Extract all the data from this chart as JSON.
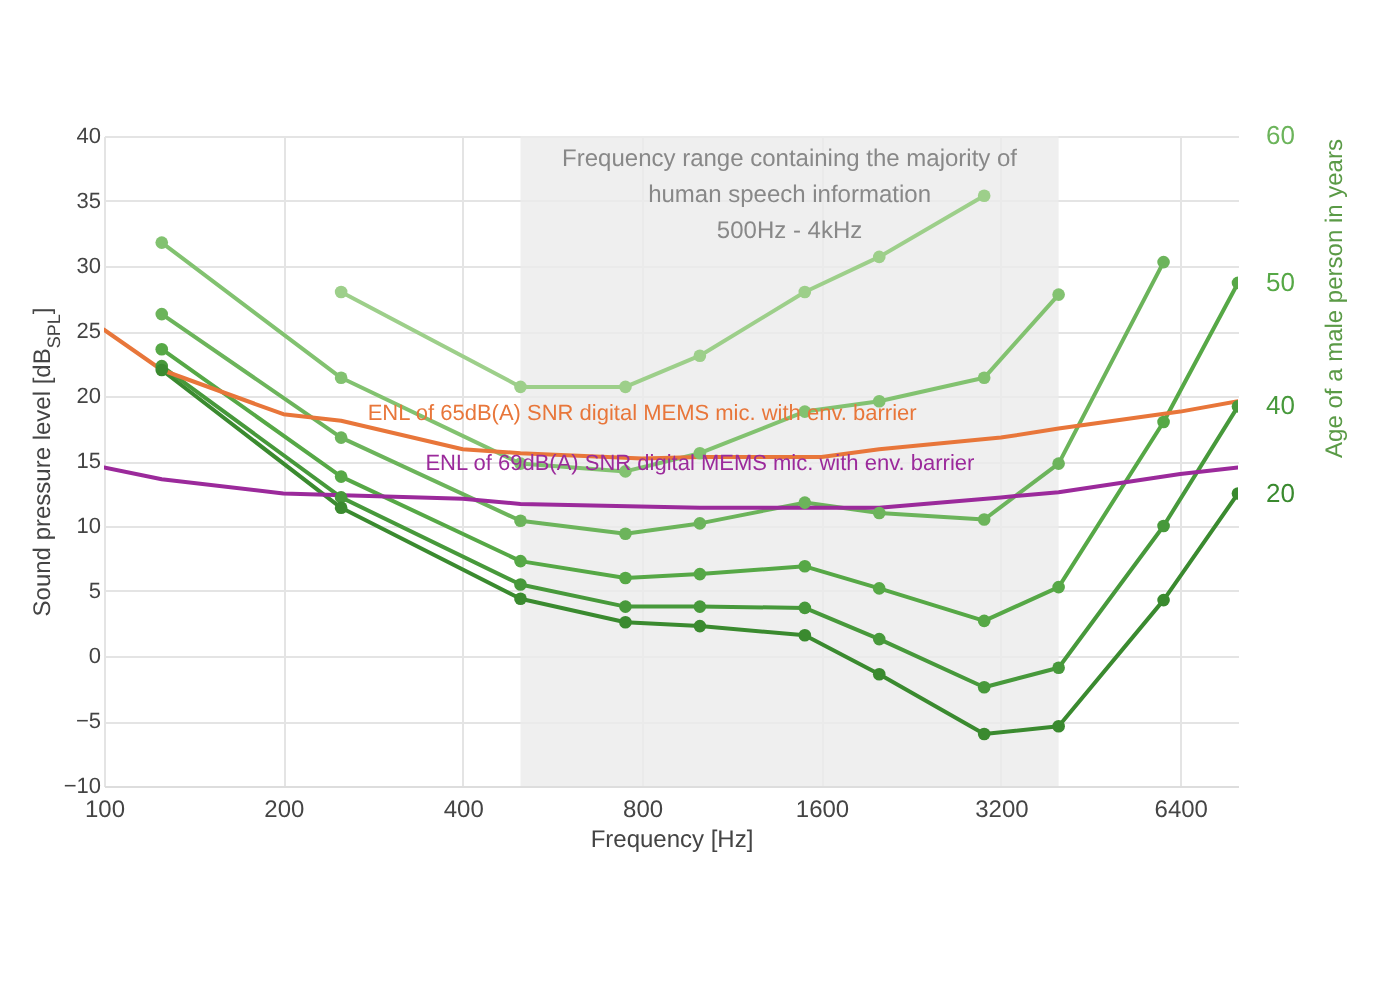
{
  "chart_data": {
    "type": "line",
    "xlabel": "Frequency [Hz]",
    "ylabel": "Sound pressure level [dB$_{SPL}$]",
    "y2label": "Age of a male person in years",
    "log": "x",
    "xlim": [
      100,
      8000
    ],
    "xticks": [
      100,
      200,
      400,
      800,
      1600,
      3200,
      6400
    ],
    "ylim": [
      -10,
      40
    ],
    "yticks": [
      -10,
      -5,
      0,
      5,
      10,
      15,
      20,
      25,
      30,
      35,
      40
    ],
    "grid": true,
    "legend": false,
    "marker": "circle",
    "line_style": "solid",
    "bands": [
      {
        "axis": "x",
        "from": 500,
        "to": 4000,
        "label": "Frequency range containing the majority of\nhuman speech information\n500Hz - 4kHz",
        "color": "#ebebeb"
      }
    ],
    "series": [
      {
        "color": "#9dcf8a",
        "x": [
          250,
          500,
          750,
          1000,
          1500,
          2000,
          3000
        ],
        "values": [
          28.0,
          20.7,
          20.7,
          23.1,
          28.0,
          30.7,
          35.4
        ]
      },
      {
        "color": "#82c270",
        "x": [
          125,
          250,
          500,
          750,
          1000,
          1500,
          2000,
          3000,
          4000
        ],
        "values": [
          31.8,
          21.4,
          14.8,
          14.2,
          15.6,
          18.8,
          19.6,
          21.4,
          27.8
        ]
      },
      {
        "name": "60",
        "color": "#6cb45b",
        "x": [
          125,
          250,
          500,
          750,
          1000,
          1500,
          2000,
          3000,
          4000,
          6000
        ],
        "values": [
          26.3,
          16.8,
          10.4,
          9.4,
          10.2,
          11.8,
          11.0,
          10.5,
          14.8,
          30.3
        ]
      },
      {
        "name": "50",
        "color": "#56a846",
        "x": [
          125,
          250,
          500,
          750,
          1000,
          1500,
          2000,
          3000,
          4000,
          6000,
          8000
        ],
        "values": [
          23.6,
          13.8,
          7.3,
          6.0,
          6.3,
          6.9,
          5.2,
          2.7,
          5.3,
          18.0,
          28.7
        ]
      },
      {
        "name": "40",
        "color": "#47993b",
        "x": [
          125,
          250,
          500,
          750,
          1000,
          1500,
          2000,
          3000,
          4000,
          6000,
          8000
        ],
        "values": [
          22.3,
          12.2,
          5.5,
          3.8,
          3.8,
          3.7,
          1.3,
          -2.4,
          -0.9,
          10.0,
          19.2
        ]
      },
      {
        "name": "20",
        "color": "#3a8a2f",
        "x": [
          125,
          250,
          500,
          750,
          1000,
          1500,
          2000,
          3000,
          4000,
          6000,
          8000
        ],
        "values": [
          22.0,
          11.4,
          4.4,
          2.6,
          2.3,
          1.6,
          -1.4,
          -6.0,
          -5.4,
          4.3,
          12.5
        ]
      },
      {
        "name": "ENL of 65dB(A) SNR digital MEMS mic. with env. barrier",
        "color": "#e8763a",
        "marker": "none",
        "x": [
          100,
          125,
          200,
          250,
          400,
          500,
          800,
          1000,
          1600,
          2000,
          3200,
          4000,
          6400,
          8000
        ],
        "values": [
          25.1,
          22.0,
          18.6,
          18.1,
          15.9,
          15.6,
          15.2,
          15.3,
          15.3,
          15.9,
          16.8,
          17.5,
          18.8,
          19.6
        ]
      },
      {
        "name": "ENL of 69dB(A) SNR digital MEMS mic. with env. barrier",
        "color": "#9b2a9b",
        "marker": "none",
        "x": [
          100,
          125,
          200,
          400,
          500,
          1000,
          2000,
          3200,
          4000,
          6400,
          8000
        ],
        "values": [
          14.5,
          13.6,
          12.5,
          12.1,
          11.7,
          11.4,
          11.4,
          12.2,
          12.6,
          14.0,
          14.5
        ]
      }
    ]
  }
}
